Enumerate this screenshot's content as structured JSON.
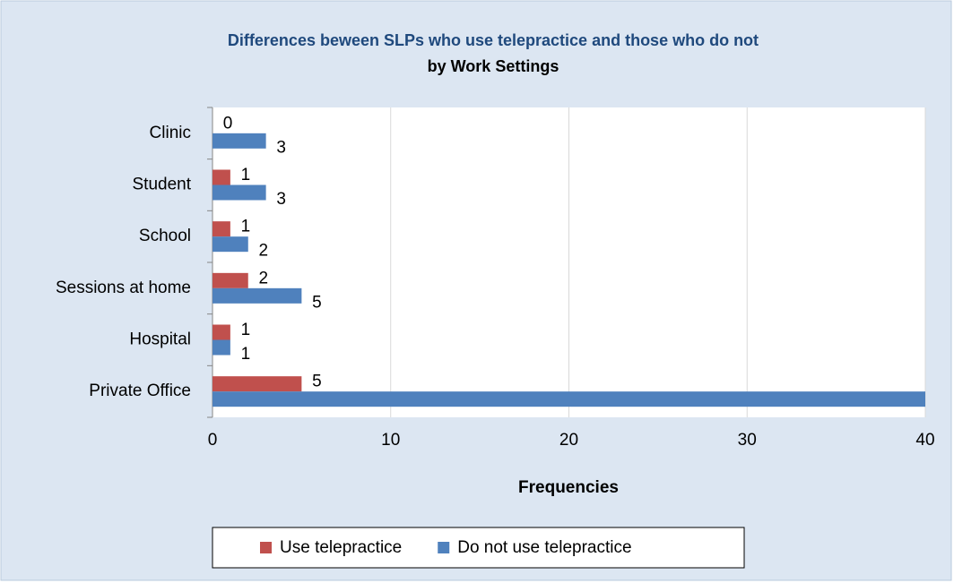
{
  "chart_data": {
    "type": "hbar",
    "title": "Differences beween SLPs who use telepractice and those who do not",
    "subtitle": "by Work Settings",
    "x_label": "Frequencies",
    "categories": [
      "Clinic",
      "Student",
      "School",
      "Sessions at home",
      "Hospital",
      "Private Office"
    ],
    "series": [
      {
        "name": "Use telepractice",
        "color": "#c0504d",
        "values": [
          0,
          1,
          1,
          2,
          1,
          5
        ]
      },
      {
        "name": "Do not use telepractice",
        "color": "#4f81bd",
        "values": [
          3,
          3,
          2,
          5,
          1,
          40
        ],
        "value_labels": [
          "3",
          "3",
          "2",
          "5",
          "1",
          null
        ]
      }
    ],
    "xlim": [
      0,
      40
    ],
    "xticks": [
      0,
      10,
      20,
      30,
      40
    ],
    "grid": true,
    "legend": "bottom"
  }
}
